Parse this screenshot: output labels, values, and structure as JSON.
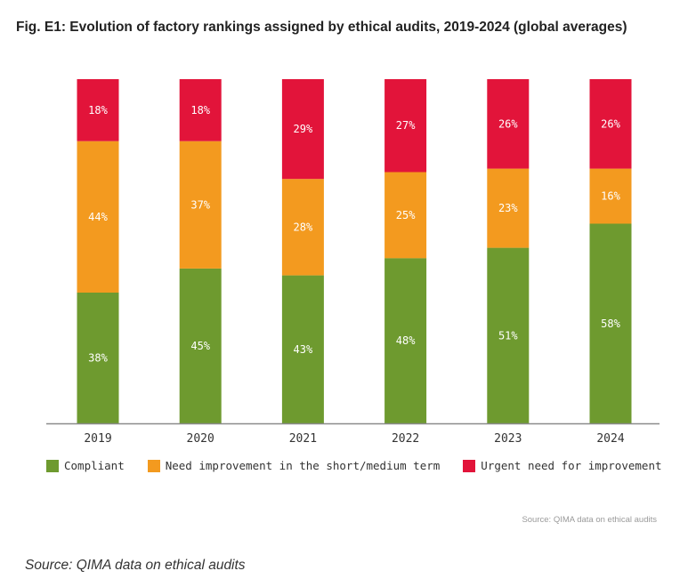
{
  "chart_data": {
    "type": "bar",
    "stacked": true,
    "title": "Fig. E1: Evolution of factory rankings assigned by ethical audits, 2019-2024 (global averages)",
    "categories": [
      "2019",
      "2020",
      "2021",
      "2022",
      "2023",
      "2024"
    ],
    "series": [
      {
        "name": "Compliant",
        "color": "#6e9a2f",
        "values": [
          38,
          45,
          43,
          48,
          51,
          58
        ]
      },
      {
        "name": "Need improvement in the short/medium term",
        "color": "#f39a1f",
        "values": [
          44,
          37,
          28,
          25,
          23,
          16
        ]
      },
      {
        "name": "Urgent need for improvement",
        "color": "#e2143a",
        "values": [
          18,
          18,
          29,
          27,
          26,
          26
        ]
      }
    ],
    "value_suffix": "%",
    "ylim": [
      0,
      100
    ],
    "grid": false,
    "legend_position": "bottom"
  },
  "inner_source": "Source: QIMA data on ethical audits",
  "page_source": "Source: QIMA data on ethical audits"
}
